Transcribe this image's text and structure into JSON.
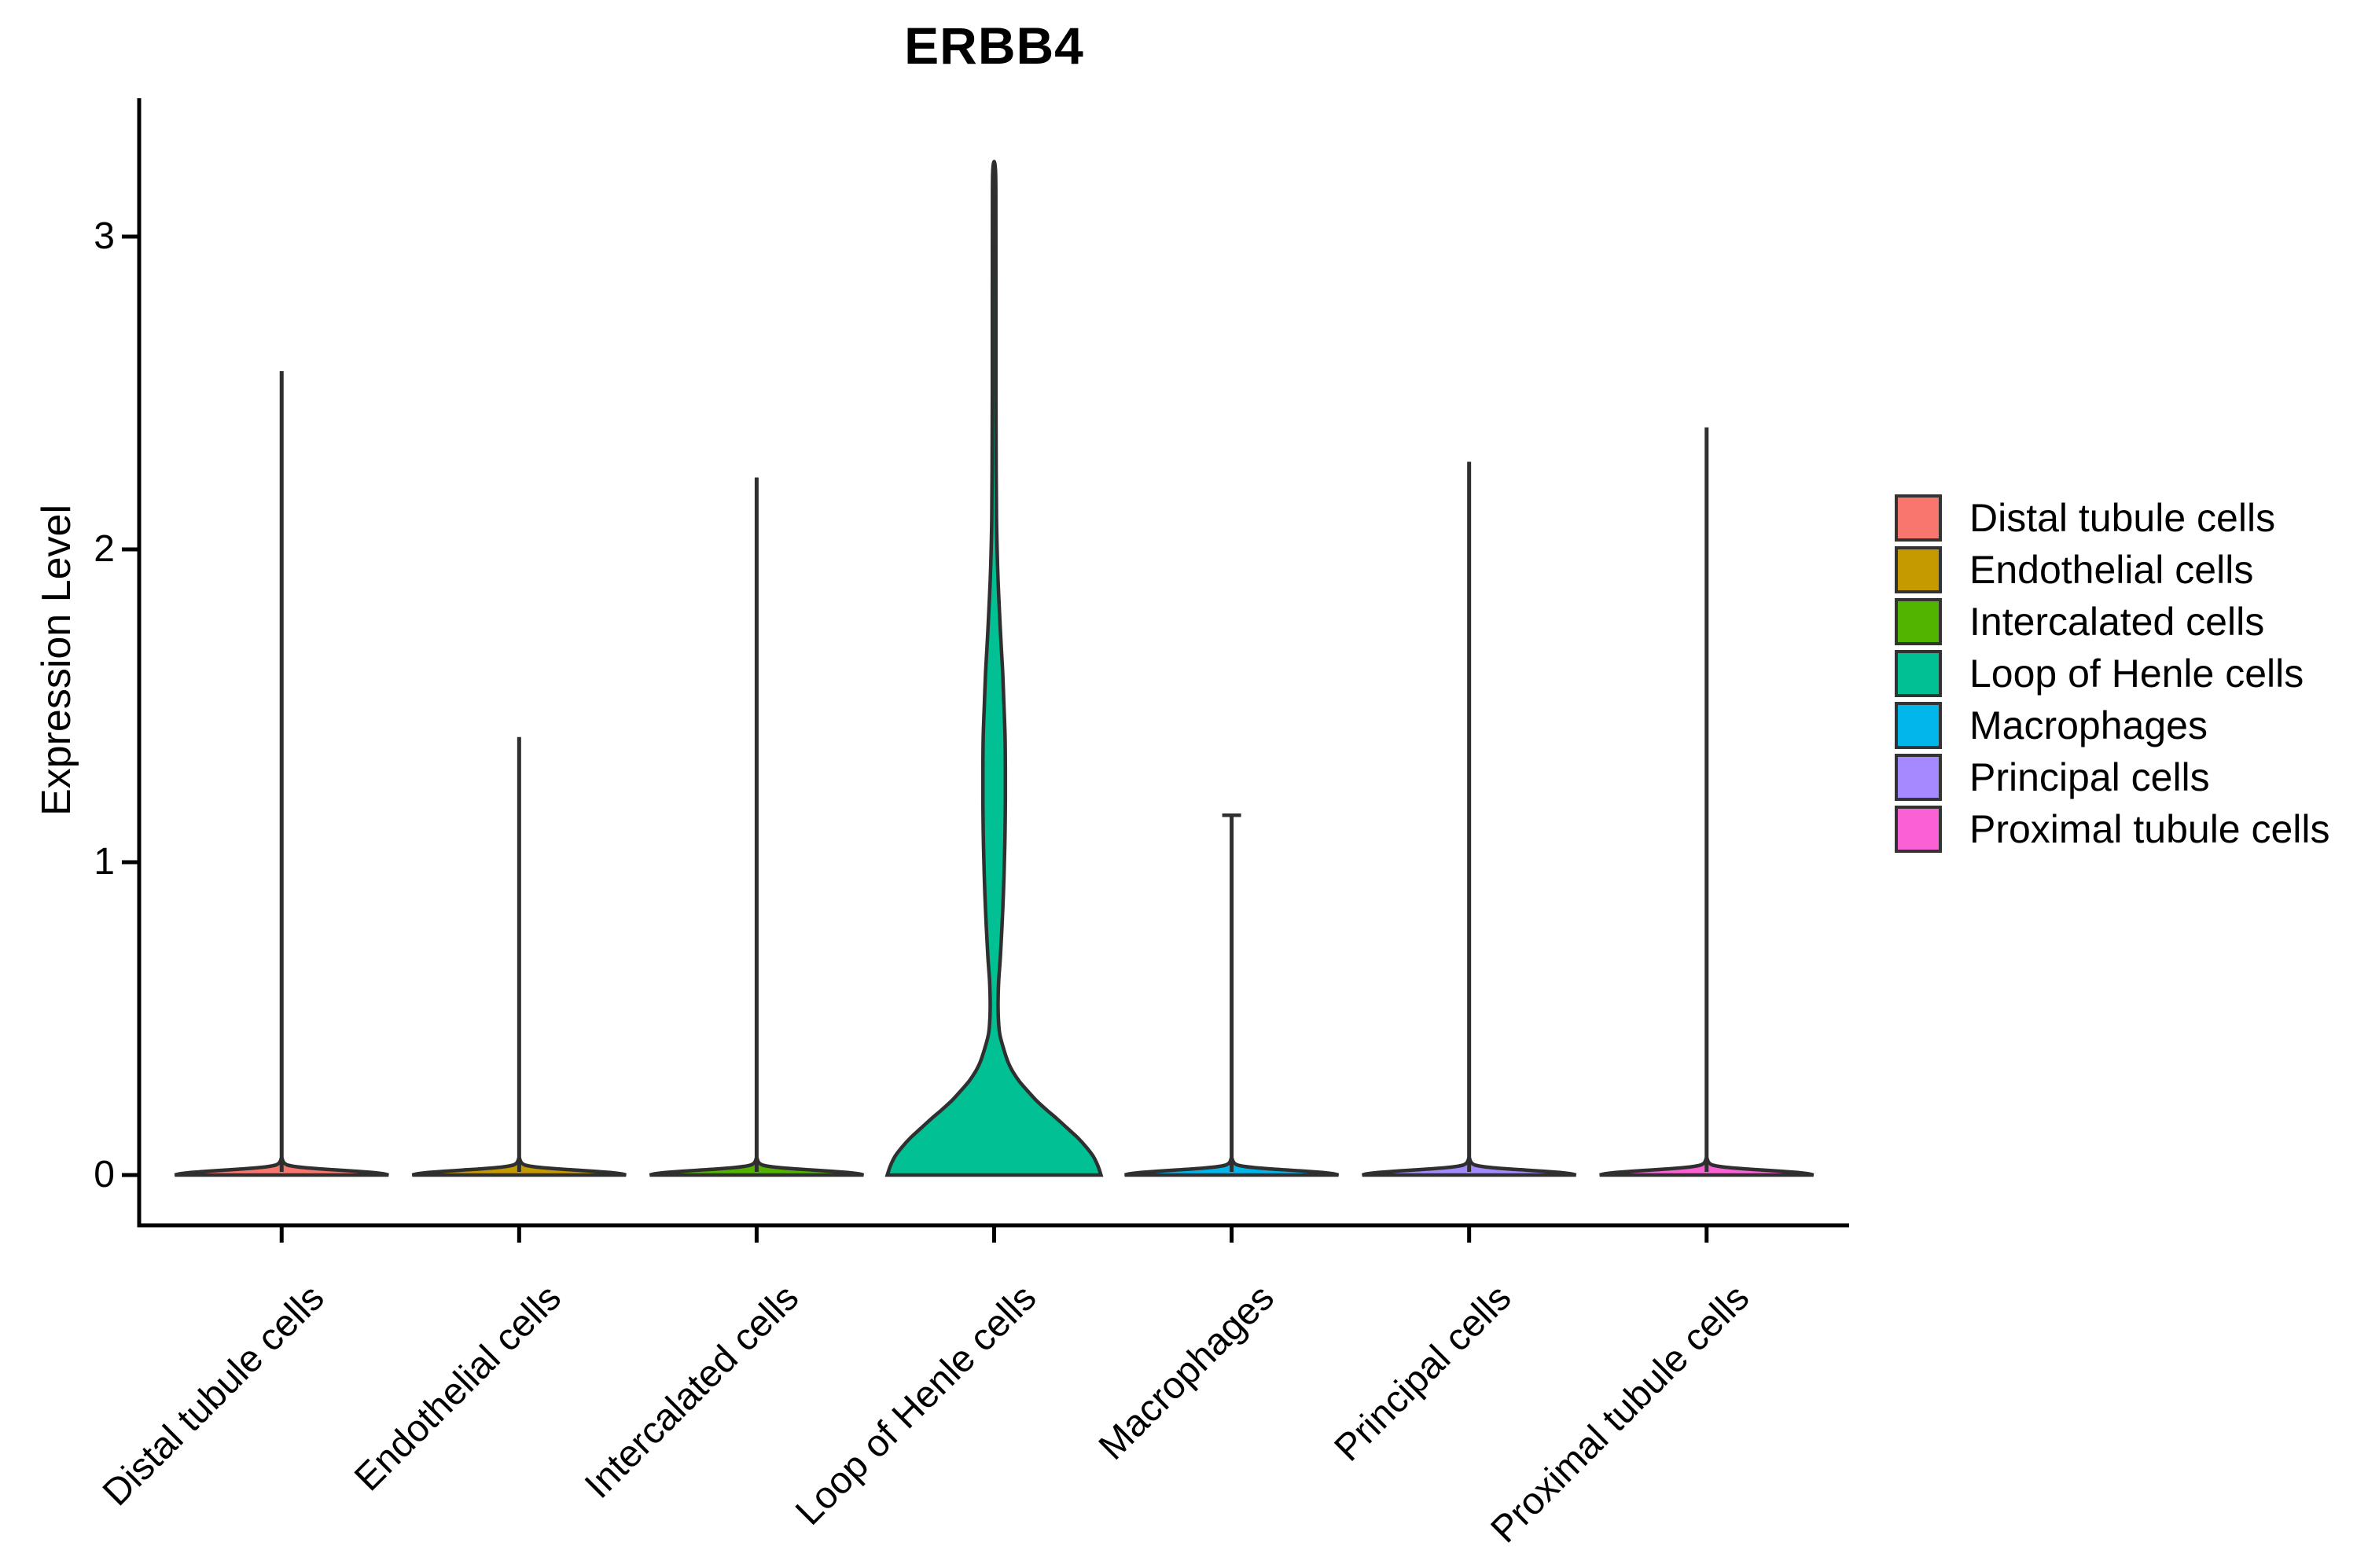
{
  "chart_data": {
    "type": "violin",
    "title": "ERBB4",
    "xlabel": "",
    "ylabel": "Expression Level",
    "yticks": [
      "0",
      "1",
      "2",
      "3"
    ],
    "ylim": [
      -0.16,
      3.4
    ],
    "grid": false,
    "legend_position": "right",
    "categories": [
      "Distal tubule cells",
      "Endothelial cells",
      "Intercalated cells",
      "Loop of Henle cells",
      "Macrophages",
      "Principal cells",
      "Proximal tubule cells"
    ],
    "series": [
      {
        "name": "Distal tubule cells",
        "color": "#F8766D",
        "max_expression": 2.57,
        "shape": "base",
        "top_cap": false
      },
      {
        "name": "Endothelial cells",
        "color": "#C49A00",
        "max_expression": 1.4,
        "shape": "base",
        "top_cap": false
      },
      {
        "name": "Intercalated cells",
        "color": "#53B400",
        "max_expression": 2.23,
        "shape": "base",
        "top_cap": false
      },
      {
        "name": "Loop of Henle cells",
        "color": "#00C094",
        "max_expression": 3.24,
        "shape": "loop",
        "top_cap": false
      },
      {
        "name": "Macrophages",
        "color": "#00B6EB",
        "max_expression": 1.15,
        "shape": "base",
        "top_cap": true
      },
      {
        "name": "Principal cells",
        "color": "#A58AFF",
        "max_expression": 2.28,
        "shape": "base",
        "top_cap": false
      },
      {
        "name": "Proximal tubule cells",
        "color": "#FB61D7",
        "max_expression": 2.39,
        "shape": "base",
        "top_cap": false
      }
    ],
    "profiles": {
      "base": [
        [
          0,
          1.0
        ],
        [
          0.004,
          0.95
        ],
        [
          0.008,
          0.85
        ],
        [
          0.012,
          0.7
        ],
        [
          0.016,
          0.52
        ],
        [
          0.02,
          0.34
        ],
        [
          0.024,
          0.2
        ],
        [
          0.028,
          0.11
        ],
        [
          0.032,
          0.055
        ],
        [
          0.038,
          0.025
        ],
        [
          0.045,
          0.012
        ],
        [
          0.055,
          0
        ]
      ],
      "loop": [
        [
          0,
          1.0
        ],
        [
          0.03,
          0.97
        ],
        [
          0.06,
          0.927
        ],
        [
          0.09,
          0.86
        ],
        [
          0.12,
          0.78
        ],
        [
          0.15,
          0.684
        ],
        [
          0.18,
          0.588
        ],
        [
          0.21,
          0.485
        ],
        [
          0.24,
          0.39
        ],
        [
          0.27,
          0.31
        ],
        [
          0.3,
          0.235
        ],
        [
          0.33,
          0.176
        ],
        [
          0.36,
          0.132
        ],
        [
          0.4,
          0.092
        ],
        [
          0.45,
          0.053
        ],
        [
          0.5,
          0.04
        ],
        [
          0.55,
          0.037
        ],
        [
          0.62,
          0.043
        ],
        [
          0.7,
          0.059
        ],
        [
          0.8,
          0.074
        ],
        [
          0.9,
          0.087
        ],
        [
          1.0,
          0.096
        ],
        [
          1.1,
          0.102
        ],
        [
          1.2,
          0.105
        ],
        [
          1.3,
          0.105
        ],
        [
          1.4,
          0.102
        ],
        [
          1.5,
          0.092
        ],
        [
          1.6,
          0.081
        ],
        [
          1.7,
          0.065
        ],
        [
          1.8,
          0.05
        ],
        [
          1.9,
          0.037
        ],
        [
          2.0,
          0.028
        ],
        [
          2.1,
          0.022
        ],
        [
          2.25,
          0.019
        ],
        [
          2.5,
          0.017
        ],
        [
          2.8,
          0.017
        ],
        [
          3.05,
          0.016
        ],
        [
          3.2,
          0.014
        ],
        [
          3.24,
          0
        ]
      ]
    },
    "outline_color": "#2F2F2F",
    "axis_color": "#000000"
  }
}
